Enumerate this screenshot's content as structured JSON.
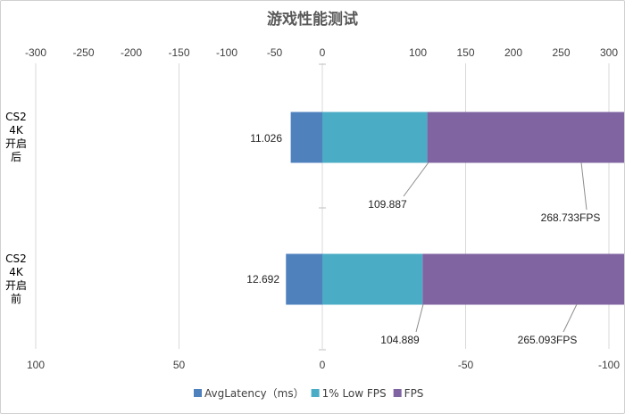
{
  "chart_data": {
    "type": "bar",
    "orientation": "horizontal",
    "stacked": true,
    "title": "游戏性能测试",
    "categories": [
      {
        "lines": [
          "CS2",
          "4K",
          "开启",
          "后"
        ]
      },
      {
        "lines": [
          "CS2",
          "4K",
          "开启",
          "前"
        ]
      }
    ],
    "series": [
      {
        "name": "AvgLatency（ms）",
        "axis": "secondary",
        "color": "#4F81BD",
        "values": [
          11.026,
          12.692
        ]
      },
      {
        "name": "1% Low FPS",
        "axis": "primary",
        "color": "#4BACC6",
        "values": [
          109.887,
          104.889
        ]
      },
      {
        "name": "FPS",
        "axis": "primary",
        "color": "#8064A2",
        "values": [
          268.733,
          265.093
        ]
      }
    ],
    "data_labels": [
      {
        "category": 0,
        "series": 0,
        "text": "11.026"
      },
      {
        "category": 0,
        "series": 1,
        "text": "109.887"
      },
      {
        "category": 0,
        "series": 2,
        "text": "268.733FPS"
      },
      {
        "category": 1,
        "series": 0,
        "text": "12.692"
      },
      {
        "category": 1,
        "series": 1,
        "text": "104.889"
      },
      {
        "category": 1,
        "series": 2,
        "text": "265.093FPS"
      }
    ],
    "primary_axis": {
      "position": "top",
      "range": [
        -300,
        300
      ],
      "ticks": [
        "-300",
        "-250",
        "-200",
        "-150",
        "-100",
        "-50",
        "0",
        "100",
        "150",
        "200",
        "250",
        "300"
      ],
      "tick_values": [
        -300,
        -250,
        -200,
        -150,
        -100,
        -50,
        0,
        100,
        150,
        200,
        250,
        300
      ]
    },
    "secondary_axis": {
      "position": "bottom",
      "reversed": true,
      "range": [
        100,
        -100
      ],
      "ticks": [
        "100",
        "50",
        "0",
        "-50",
        "-100"
      ],
      "tick_values": [
        100,
        50,
        0,
        -50,
        -100
      ]
    },
    "legend": "bottom",
    "gridlines": true
  }
}
